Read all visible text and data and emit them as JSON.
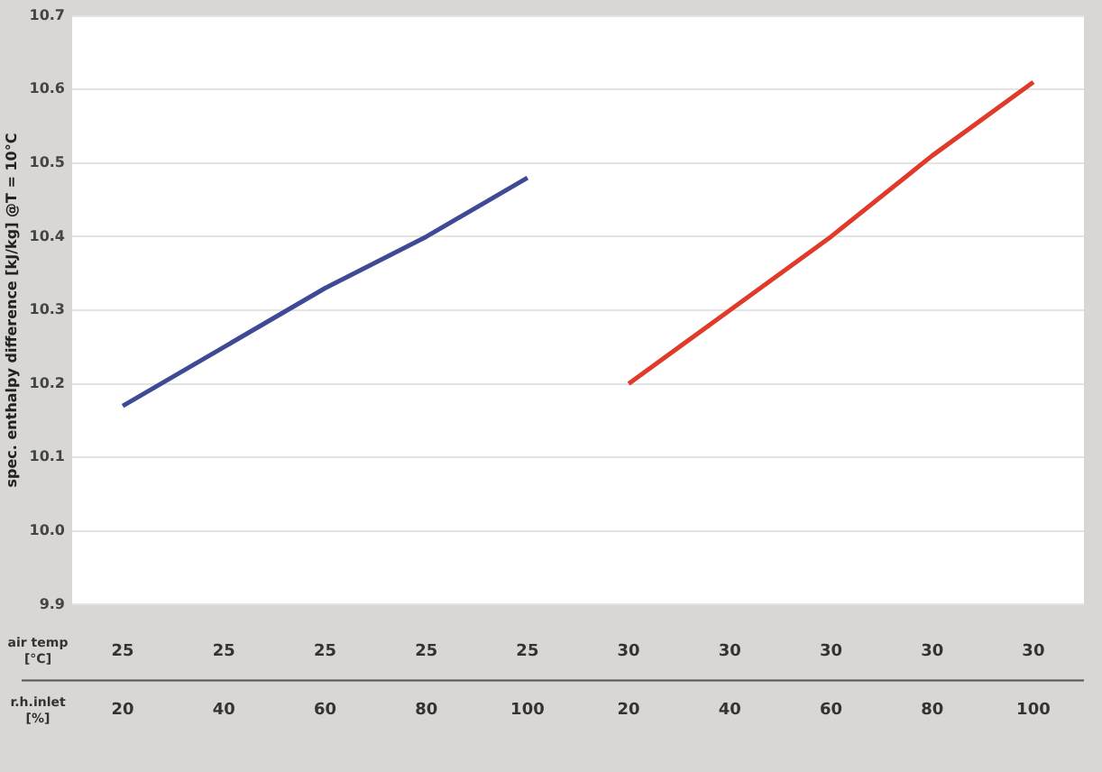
{
  "chart_data": {
    "type": "line",
    "ylabel": "spec. enthalpy difference [kJ/kg] @T = 10°C",
    "categories": [
      "25\n20",
      "25\n40",
      "25\n60",
      "25\n80",
      "25\n100",
      "30\n20",
      "30\n40",
      "30\n60",
      "30\n80",
      "30\n100"
    ],
    "series": [
      {
        "color": "#3f4a96",
        "values": [
          10.17,
          10.25,
          10.33,
          10.4,
          10.48,
          null,
          null,
          null,
          null,
          null
        ]
      },
      {
        "color": "#e03a2a",
        "values": [
          null,
          null,
          null,
          null,
          null,
          10.2,
          10.3,
          10.4,
          10.51,
          10.61
        ]
      }
    ],
    "annotations": [
      "air temp\n[°C]",
      "r.h.inlet\n[%]"
    ],
    "ylim": [
      9.9,
      10.7
    ],
    "yticks": [
      9.9,
      {
        "value": 10.0,
        "label": "10.0"
      },
      10.1,
      10.2,
      10.3,
      10.4,
      10.5,
      10.6,
      10.7
    ],
    "grid": "y",
    "legend": false,
    "marker": "none",
    "line_style": "solid"
  }
}
